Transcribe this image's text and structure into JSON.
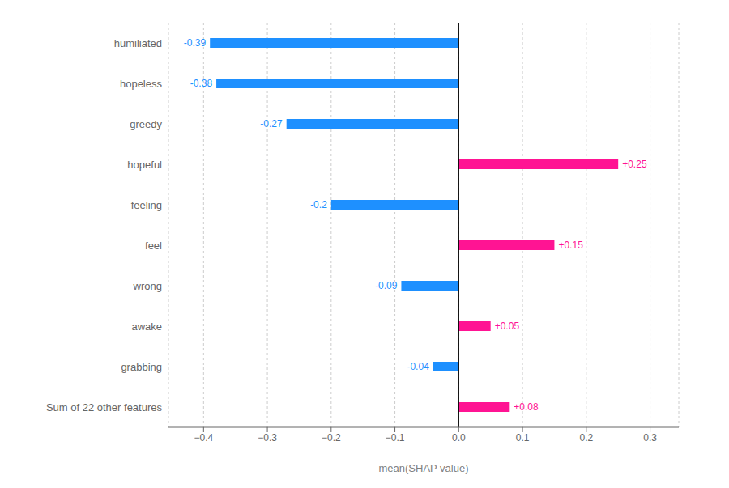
{
  "chart_data": {
    "type": "bar",
    "orientation": "horizontal",
    "categories": [
      "humiliated",
      "hopeless",
      "greedy",
      "hopeful",
      "feeling",
      "feel",
      "wrong",
      "awake",
      "grabbing",
      "Sum of 22 other features"
    ],
    "values": [
      -0.39,
      -0.38,
      -0.27,
      0.25,
      -0.2,
      0.15,
      -0.09,
      0.05,
      -0.04,
      0.08
    ],
    "value_labels": [
      "-0.39",
      "-0.38",
      "-0.27",
      "+0.25",
      "-0.2",
      "+0.15",
      "-0.09",
      "+0.05",
      "-0.04",
      "+0.08"
    ],
    "colors": [
      "#1E90FF",
      "#1E90FF",
      "#1E90FF",
      "#FF1493",
      "#1E90FF",
      "#FF1493",
      "#1E90FF",
      "#FF1493",
      "#1E90FF",
      "#FF1493"
    ],
    "data_labels": true,
    "xlabel": "mean(SHAP value)",
    "xlim": [
      -0.455,
      0.345
    ],
    "xticks": [
      {
        "value": -0.4,
        "label": "−0.4"
      },
      {
        "value": -0.3,
        "label": "−0.3"
      },
      {
        "value": -0.2,
        "label": "−0.2"
      },
      {
        "value": -0.1,
        "label": "−0.1"
      },
      {
        "value": 0.0,
        "label": "0.0"
      },
      0.1,
      0.2,
      0.3
    ],
    "grid": true
  }
}
